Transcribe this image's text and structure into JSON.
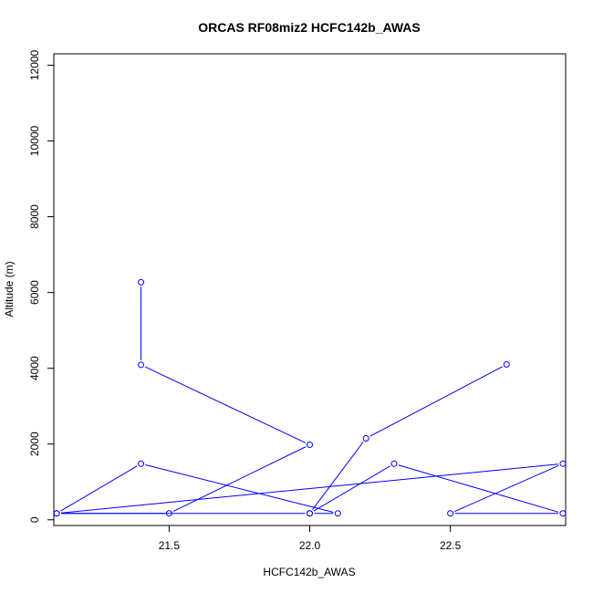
{
  "chart_data": {
    "type": "line",
    "title": "ORCAS RF08miz2 HCFC142b_AWAS",
    "xlabel": "HCFC142b_AWAS",
    "ylabel": "Altitude (m)",
    "xlim": [
      21.09,
      22.91
    ],
    "ylim": [
      -150,
      12300
    ],
    "xticks": [
      21.5,
      22.0,
      22.5
    ],
    "xtick_labels": [
      "21.5",
      "22.0",
      "22.5"
    ],
    "yticks": [
      0,
      2000,
      4000,
      6000,
      8000,
      10000,
      12000
    ],
    "ytick_labels": [
      "0",
      "2000",
      "4000",
      "6000",
      "8000",
      "10000",
      "12000"
    ],
    "grid": false,
    "series": [
      {
        "color": "#0000ff",
        "marker": "open-circle",
        "points": [
          {
            "x": 21.4,
            "y": 6270
          },
          {
            "x": 21.4,
            "y": 4090
          },
          {
            "x": 22.0,
            "y": 1980
          },
          {
            "x": 21.5,
            "y": 170
          },
          {
            "x": 21.1,
            "y": 170
          },
          {
            "x": 21.4,
            "y": 1480
          },
          {
            "x": 22.1,
            "y": 170
          },
          {
            "x": 22.0,
            "y": 170
          },
          {
            "x": 21.1,
            "y": 170
          },
          {
            "x": 22.9,
            "y": 1480
          },
          {
            "x": 22.5,
            "y": 170
          },
          {
            "x": 22.9,
            "y": 170
          },
          {
            "x": 22.3,
            "y": 1480
          },
          {
            "x": 22.0,
            "y": 170
          },
          {
            "x": 22.2,
            "y": 2150
          },
          {
            "x": 22.7,
            "y": 4100
          }
        ]
      }
    ]
  }
}
